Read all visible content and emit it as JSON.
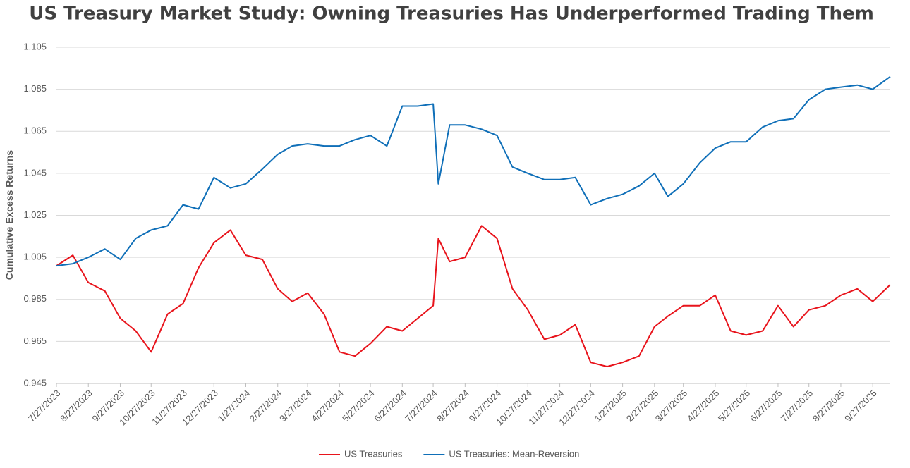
{
  "chart_data": {
    "type": "line",
    "title": "US Treasury Market Study: Owning Treasuries Has Underperformed Trading Them",
    "y_label": "Cumulative Excess Returns",
    "x": [
      "7/27/2023",
      "8/12/2023",
      "8/27/2023",
      "9/12/2023",
      "9/27/2023",
      "10/12/2023",
      "10/27/2023",
      "11/12/2023",
      "11/27/2023",
      "12/12/2023",
      "12/27/2023",
      "1/12/2024",
      "1/27/2024",
      "2/12/2024",
      "2/27/2024",
      "3/12/2024",
      "3/27/2024",
      "4/12/2024",
      "4/27/2024",
      "5/12/2024",
      "5/27/2024",
      "6/12/2024",
      "6/27/2024",
      "7/12/2024",
      "7/27/2024",
      "8/1/2024",
      "8/12/2024",
      "8/27/2024",
      "9/12/2024",
      "9/27/2024",
      "10/12/2024",
      "10/27/2024",
      "11/12/2024",
      "11/27/2024",
      "12/12/2024",
      "12/27/2024",
      "1/12/2025",
      "1/27/2025",
      "2/12/2025",
      "2/27/2025",
      "3/12/2025",
      "3/27/2025",
      "4/12/2025",
      "4/27/2025",
      "5/12/2025",
      "5/27/2025",
      "6/12/2025",
      "6/27/2025",
      "7/12/2025",
      "7/27/2025",
      "8/12/2025",
      "8/27/2025",
      "9/12/2025",
      "9/27/2025",
      "10/14/2025"
    ],
    "series": [
      {
        "name": "US Treasuries",
        "color": "#e8141c",
        "values": [
          1.001,
          1.006,
          0.993,
          0.989,
          0.976,
          0.97,
          0.96,
          0.978,
          0.983,
          1.0,
          1.012,
          1.018,
          1.006,
          1.004,
          0.99,
          0.984,
          0.988,
          0.978,
          0.96,
          0.958,
          0.964,
          0.972,
          0.97,
          0.976,
          0.982,
          1.014,
          1.003,
          1.005,
          1.02,
          1.014,
          0.99,
          0.98,
          0.966,
          0.968,
          0.973,
          0.955,
          0.953,
          0.955,
          0.958,
          0.972,
          0.977,
          0.982,
          0.982,
          0.987,
          0.97,
          0.968,
          0.97,
          0.982,
          0.972,
          0.98,
          0.982,
          0.987,
          0.99,
          0.984,
          0.992
        ]
      },
      {
        "name": "US Treasuries: Mean-Reversion",
        "color": "#0f6fb8",
        "values": [
          1.001,
          1.002,
          1.005,
          1.009,
          1.004,
          1.014,
          1.018,
          1.02,
          1.03,
          1.028,
          1.043,
          1.038,
          1.04,
          1.047,
          1.054,
          1.058,
          1.059,
          1.058,
          1.058,
          1.061,
          1.063,
          1.058,
          1.077,
          1.077,
          1.078,
          1.04,
          1.068,
          1.068,
          1.066,
          1.063,
          1.048,
          1.045,
          1.042,
          1.042,
          1.043,
          1.03,
          1.033,
          1.035,
          1.039,
          1.045,
          1.034,
          1.04,
          1.05,
          1.057,
          1.06,
          1.06,
          1.067,
          1.07,
          1.071,
          1.08,
          1.085,
          1.086,
          1.087,
          1.085,
          1.091
        ]
      }
    ],
    "xlim": [
      "7/27/2023",
      "10/14/2025"
    ],
    "xticks": [
      "7/27/2023",
      "8/27/2023",
      "9/27/2023",
      "10/27/2023",
      "11/27/2023",
      "12/27/2023",
      "1/27/2024",
      "2/27/2024",
      "3/27/2024",
      "4/27/2024",
      "5/27/2024",
      "6/27/2024",
      "7/27/2024",
      "8/27/2024",
      "9/27/2024",
      "10/27/2024",
      "11/27/2024",
      "12/27/2024",
      "1/27/2025",
      "2/27/2025",
      "3/27/2025",
      "4/27/2025",
      "5/27/2025",
      "6/27/2025",
      "7/27/2025",
      "8/27/2025",
      "9/27/2025"
    ],
    "ylim": [
      0.945,
      1.105
    ],
    "yticks": [
      0.945,
      0.965,
      0.985,
      1.005,
      1.025,
      1.045,
      1.065,
      1.085,
      1.105
    ],
    "grid": true,
    "legend": "bottom"
  }
}
